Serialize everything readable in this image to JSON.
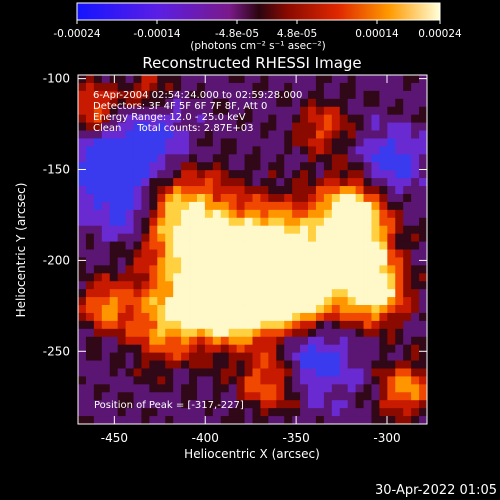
{
  "colorbar": {
    "tick_labels": [
      "-0.00024",
      "-0.00014",
      "-4.8e-05",
      "4.8e-05",
      "0.00014",
      "0.00024"
    ],
    "units_label": "(photons cm⁻² s⁻¹ asec⁻²)",
    "range": [
      -0.00024,
      0.00024
    ]
  },
  "plot": {
    "title": "Reconstructed RHESSI Image",
    "annotation_lines": [
      "6-Apr-2004 02:54:24.000 to 02:59:28.000",
      "Detectors: 3F 4F 5F 6F 7F 8F, Att 0",
      "Energy Range: 12.0 - 25.0 keV",
      "Clean     Total counts: 2.87E+03"
    ],
    "peak_label": "Position of Peak = [-317,-227]",
    "x_axis": {
      "label": "Heliocentric X (arcsec)",
      "range": [
        -470,
        -278
      ],
      "ticks": [
        {
          "v": -450,
          "label": "-450"
        },
        {
          "v": -400,
          "label": "-400"
        },
        {
          "v": -350,
          "label": "-350"
        },
        {
          "v": -300,
          "label": "-300"
        }
      ]
    },
    "y_axis": {
      "label": "Heliocentric Y (arcsec)",
      "range": [
        -290,
        -98
      ],
      "ticks": [
        {
          "v": -100,
          "label": "-100"
        },
        {
          "v": -150,
          "label": "-150"
        },
        {
          "v": -200,
          "label": "-200"
        },
        {
          "v": -250,
          "label": "-250"
        }
      ]
    }
  },
  "footer": {
    "timestamp": "30-Apr-2022 01:05"
  }
}
